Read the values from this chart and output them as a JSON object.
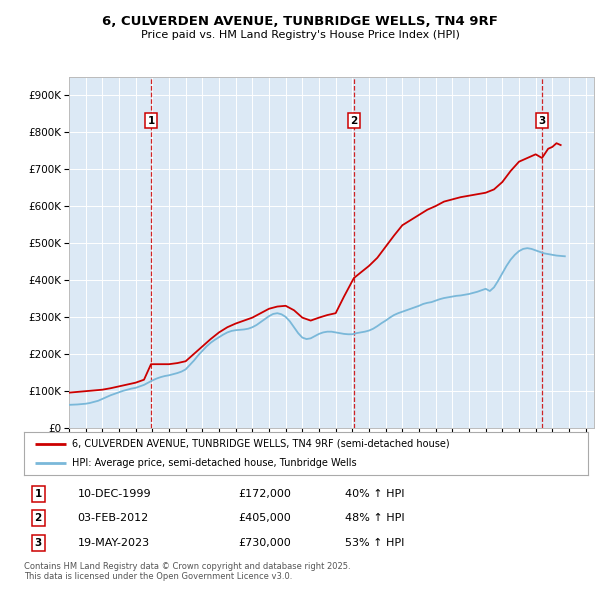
{
  "title": "6, CULVERDEN AVENUE, TUNBRIDGE WELLS, TN4 9RF",
  "subtitle": "Price paid vs. HM Land Registry's House Price Index (HPI)",
  "bg_color": "#dce9f5",
  "plot_bg_color": "#dce9f5",
  "hpi_line_color": "#7ab8d9",
  "price_line_color": "#cc0000",
  "vline_color": "#cc0000",
  "ytick_labels": [
    "£0",
    "£100K",
    "£200K",
    "£300K",
    "£400K",
    "£500K",
    "£600K",
    "£700K",
    "£800K",
    "£900K"
  ],
  "yticks": [
    0,
    100000,
    200000,
    300000,
    400000,
    500000,
    600000,
    700000,
    800000,
    900000
  ],
  "xmin": 1995.0,
  "xmax": 2026.5,
  "ymin": 0,
  "ymax": 950000,
  "sales": [
    {
      "num": 1,
      "date": "10-DEC-1999",
      "year": 1999.92,
      "price": 172000,
      "pct": "40%",
      "dir": "↑"
    },
    {
      "num": 2,
      "date": "03-FEB-2012",
      "year": 2012.09,
      "price": 405000,
      "pct": "48%",
      "dir": "↑"
    },
    {
      "num": 3,
      "date": "19-MAY-2023",
      "year": 2023.38,
      "price": 730000,
      "pct": "53%",
      "dir": "↑"
    }
  ],
  "legend_line1": "6, CULVERDEN AVENUE, TUNBRIDGE WELLS, TN4 9RF (semi-detached house)",
  "legend_line2": "HPI: Average price, semi-detached house, Tunbridge Wells",
  "footnote": "Contains HM Land Registry data © Crown copyright and database right 2025.\nThis data is licensed under the Open Government Licence v3.0.",
  "hpi_data": {
    "years": [
      1995.0,
      1995.25,
      1995.5,
      1995.75,
      1996.0,
      1996.25,
      1996.5,
      1996.75,
      1997.0,
      1997.25,
      1997.5,
      1997.75,
      1998.0,
      1998.25,
      1998.5,
      1998.75,
      1999.0,
      1999.25,
      1999.5,
      1999.75,
      2000.0,
      2000.25,
      2000.5,
      2000.75,
      2001.0,
      2001.25,
      2001.5,
      2001.75,
      2002.0,
      2002.25,
      2002.5,
      2002.75,
      2003.0,
      2003.25,
      2003.5,
      2003.75,
      2004.0,
      2004.25,
      2004.5,
      2004.75,
      2005.0,
      2005.25,
      2005.5,
      2005.75,
      2006.0,
      2006.25,
      2006.5,
      2006.75,
      2007.0,
      2007.25,
      2007.5,
      2007.75,
      2008.0,
      2008.25,
      2008.5,
      2008.75,
      2009.0,
      2009.25,
      2009.5,
      2009.75,
      2010.0,
      2010.25,
      2010.5,
      2010.75,
      2011.0,
      2011.25,
      2011.5,
      2011.75,
      2012.0,
      2012.25,
      2012.5,
      2012.75,
      2013.0,
      2013.25,
      2013.5,
      2013.75,
      2014.0,
      2014.25,
      2014.5,
      2014.75,
      2015.0,
      2015.25,
      2015.5,
      2015.75,
      2016.0,
      2016.25,
      2016.5,
      2016.75,
      2017.0,
      2017.25,
      2017.5,
      2017.75,
      2018.0,
      2018.25,
      2018.5,
      2018.75,
      2019.0,
      2019.25,
      2019.5,
      2019.75,
      2020.0,
      2020.25,
      2020.5,
      2020.75,
      2021.0,
      2021.25,
      2021.5,
      2021.75,
      2022.0,
      2022.25,
      2022.5,
      2022.75,
      2023.0,
      2023.25,
      2023.5,
      2023.75,
      2024.0,
      2024.25,
      2024.5,
      2024.75
    ],
    "values": [
      62000,
      62500,
      63000,
      64000,
      65000,
      67000,
      70000,
      73000,
      78000,
      83000,
      88000,
      92000,
      96000,
      100000,
      103000,
      106000,
      108000,
      112000,
      116000,
      122000,
      128000,
      133000,
      137000,
      140000,
      142000,
      145000,
      148000,
      152000,
      158000,
      170000,
      182000,
      196000,
      208000,
      220000,
      230000,
      238000,
      245000,
      252000,
      258000,
      262000,
      264000,
      265000,
      266000,
      268000,
      272000,
      278000,
      286000,
      294000,
      302000,
      308000,
      310000,
      307000,
      300000,
      288000,
      272000,
      256000,
      244000,
      240000,
      242000,
      248000,
      254000,
      258000,
      260000,
      260000,
      258000,
      256000,
      254000,
      253000,
      253000,
      256000,
      258000,
      260000,
      263000,
      268000,
      275000,
      283000,
      290000,
      298000,
      305000,
      310000,
      314000,
      318000,
      322000,
      326000,
      330000,
      335000,
      338000,
      340000,
      344000,
      348000,
      351000,
      353000,
      355000,
      357000,
      358000,
      360000,
      362000,
      365000,
      368000,
      372000,
      376000,
      370000,
      380000,
      398000,
      418000,
      438000,
      455000,
      468000,
      478000,
      484000,
      486000,
      484000,
      480000,
      476000,
      472000,
      470000,
      468000,
      466000,
      465000,
      464000
    ]
  },
  "price_data": {
    "years": [
      1995.0,
      1995.5,
      1996.0,
      1996.5,
      1997.0,
      1997.5,
      1998.0,
      1998.5,
      1999.0,
      1999.5,
      1999.92,
      2000.5,
      2001.0,
      2001.5,
      2002.0,
      2002.5,
      2003.0,
      2003.5,
      2004.0,
      2004.5,
      2005.0,
      2005.5,
      2006.0,
      2006.5,
      2007.0,
      2007.5,
      2008.0,
      2008.5,
      2009.0,
      2009.5,
      2010.0,
      2010.5,
      2011.0,
      2011.5,
      2012.09,
      2012.5,
      2013.0,
      2013.5,
      2014.0,
      2014.5,
      2015.0,
      2015.5,
      2016.0,
      2016.5,
      2017.0,
      2017.5,
      2018.0,
      2018.5,
      2019.0,
      2019.5,
      2020.0,
      2020.5,
      2021.0,
      2021.5,
      2022.0,
      2022.5,
      2023.0,
      2023.38,
      2023.75,
      2024.0,
      2024.25,
      2024.5
    ],
    "values": [
      95000,
      97000,
      99000,
      101000,
      103000,
      107000,
      112000,
      117000,
      122000,
      130000,
      172000,
      172000,
      172000,
      175000,
      180000,
      200000,
      220000,
      240000,
      258000,
      272000,
      282000,
      290000,
      298000,
      310000,
      322000,
      328000,
      330000,
      318000,
      298000,
      290000,
      298000,
      305000,
      310000,
      355000,
      405000,
      420000,
      438000,
      460000,
      490000,
      520000,
      548000,
      562000,
      576000,
      590000,
      600000,
      612000,
      618000,
      624000,
      628000,
      632000,
      636000,
      645000,
      665000,
      695000,
      720000,
      730000,
      740000,
      730000,
      755000,
      760000,
      770000,
      765000
    ]
  }
}
